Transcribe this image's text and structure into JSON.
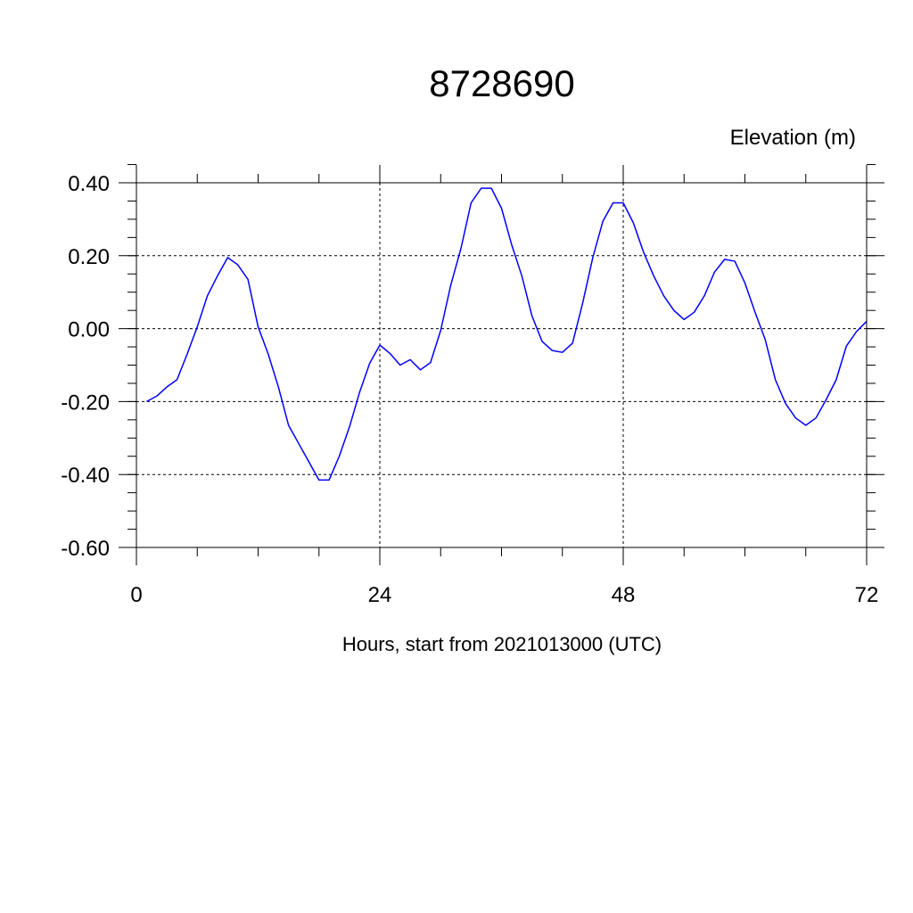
{
  "chart_data": {
    "type": "line",
    "title": "8728690",
    "ylabel": "Elevation (m)",
    "xlabel": "Hours, start from 2021013000 (UTC)",
    "xlim": [
      0,
      72
    ],
    "ylim": [
      -0.6,
      0.45
    ],
    "x_ticks": [
      0,
      24,
      48,
      72
    ],
    "x_tick_labels": [
      "0",
      "24",
      "48",
      "72"
    ],
    "y_ticks": [
      0.4,
      0.2,
      0.0,
      -0.2,
      -0.4,
      -0.6
    ],
    "y_tick_labels": [
      "0.40",
      "0.20",
      "0.00",
      "-0.20",
      "-0.40",
      "-0.60"
    ],
    "grid": true,
    "series": [
      {
        "color": "#0000ff",
        "x": [
          1,
          2,
          3,
          4,
          5,
          6,
          7,
          8,
          9,
          10,
          11,
          12,
          13,
          14,
          15,
          16,
          17,
          18,
          19,
          20,
          21,
          22,
          23,
          24,
          25,
          26,
          27,
          28,
          29,
          30,
          31,
          32,
          33,
          34,
          35,
          36,
          37,
          38,
          39,
          40,
          41,
          42,
          43,
          44,
          45,
          46,
          47,
          48,
          49,
          50,
          51,
          52,
          53,
          54,
          55,
          56,
          57,
          58,
          59,
          60,
          61,
          62,
          63,
          64,
          65,
          66,
          67,
          68,
          69,
          70,
          71,
          72
        ],
        "values": [
          -0.2,
          -0.185,
          -0.16,
          -0.14,
          -0.07,
          0.005,
          0.09,
          0.145,
          0.195,
          0.175,
          0.135,
          0.005,
          -0.07,
          -0.16,
          -0.265,
          -0.315,
          -0.365,
          -0.415,
          -0.415,
          -0.35,
          -0.27,
          -0.175,
          -0.095,
          -0.045,
          -0.068,
          -0.1,
          -0.085,
          -0.113,
          -0.093,
          -0.005,
          0.12,
          0.22,
          0.345,
          0.385,
          0.385,
          0.33,
          0.23,
          0.145,
          0.035,
          -0.035,
          -0.06,
          -0.065,
          -0.04,
          0.07,
          0.195,
          0.295,
          0.345,
          0.345,
          0.29,
          0.21,
          0.145,
          0.09,
          0.05,
          0.025,
          0.045,
          0.09,
          0.155,
          0.19,
          0.185,
          0.125,
          0.045,
          -0.03,
          -0.14,
          -0.205,
          -0.245,
          -0.265,
          -0.245,
          -0.195,
          -0.14,
          -0.048,
          -0.008,
          0.02
        ]
      }
    ]
  }
}
